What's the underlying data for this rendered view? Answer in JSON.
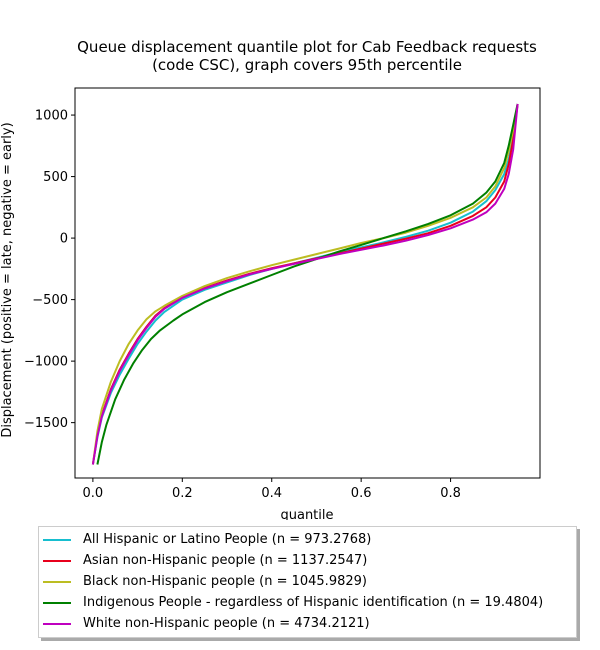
{
  "chart_data": {
    "type": "line",
    "title_lines": [
      "Queue displacement quantile plot for Cab Feedback  requests",
      "(code CSC), graph covers 95th percentile"
    ],
    "xlabel": "quantile",
    "ylabel": "Displacement (positive = late, negative = early)",
    "xlim": [
      -0.04,
      1.0
    ],
    "ylim": [
      -1950,
      1220
    ],
    "xticks": [
      0.0,
      0.2,
      0.4,
      0.6,
      0.8
    ],
    "xtick_labels": [
      "0.0",
      "0.2",
      "0.4",
      "0.6",
      "0.8"
    ],
    "yticks": [
      -1500,
      -1000,
      -500,
      0,
      500,
      1000
    ],
    "ytick_labels": [
      "−1500",
      "−1000",
      "−500",
      "0",
      "500",
      "1000"
    ],
    "grid": false,
    "legend_position": "below",
    "series": [
      {
        "name": "All Hispanic or Latino People (n = 973.2768)",
        "color": "#17becf",
        "x": [
          0.0,
          0.01,
          0.02,
          0.04,
          0.06,
          0.08,
          0.1,
          0.12,
          0.14,
          0.16,
          0.2,
          0.25,
          0.3,
          0.35,
          0.4,
          0.45,
          0.5,
          0.55,
          0.6,
          0.65,
          0.7,
          0.75,
          0.8,
          0.85,
          0.88,
          0.9,
          0.92,
          0.93,
          0.94,
          0.95
        ],
        "y": [
          -1840,
          -1620,
          -1460,
          -1260,
          -1110,
          -980,
          -860,
          -760,
          -670,
          -600,
          -500,
          -420,
          -360,
          -300,
          -250,
          -205,
          -160,
          -115,
          -75,
          -35,
          10,
          60,
          125,
          215,
          300,
          390,
          520,
          640,
          820,
          1090
        ]
      },
      {
        "name": "Asian non-Hispanic people (n = 1137.2547)",
        "color": "#e8001c",
        "x": [
          0.0,
          0.01,
          0.02,
          0.04,
          0.06,
          0.08,
          0.1,
          0.12,
          0.14,
          0.16,
          0.2,
          0.25,
          0.3,
          0.35,
          0.4,
          0.45,
          0.5,
          0.55,
          0.6,
          0.65,
          0.7,
          0.75,
          0.8,
          0.85,
          0.88,
          0.9,
          0.92,
          0.93,
          0.94,
          0.95
        ],
        "y": [
          -1840,
          -1600,
          -1440,
          -1230,
          -1070,
          -940,
          -820,
          -720,
          -630,
          -570,
          -480,
          -405,
          -345,
          -290,
          -245,
          -205,
          -165,
          -125,
          -85,
          -45,
          -5,
          40,
          100,
          180,
          250,
          330,
          460,
          600,
          800,
          1090
        ]
      },
      {
        "name": "Black non-Hispanic people (n = 1045.9829)",
        "color": "#bcbd22",
        "x": [
          0.0,
          0.01,
          0.02,
          0.04,
          0.06,
          0.08,
          0.1,
          0.12,
          0.14,
          0.16,
          0.2,
          0.25,
          0.3,
          0.35,
          0.4,
          0.45,
          0.5,
          0.55,
          0.6,
          0.65,
          0.7,
          0.75,
          0.8,
          0.85,
          0.88,
          0.9,
          0.92,
          0.93,
          0.94,
          0.95
        ],
        "y": [
          -1840,
          -1570,
          -1390,
          -1170,
          -1000,
          -860,
          -750,
          -660,
          -595,
          -550,
          -470,
          -390,
          -325,
          -270,
          -220,
          -175,
          -130,
          -85,
          -40,
          0,
          45,
          100,
          165,
          250,
          330,
          420,
          570,
          710,
          880,
          1090
        ]
      },
      {
        "name": "Indigenous People - regardless of Hispanic identification (n = 19.4804)",
        "color": "#008000",
        "x": [
          0.01,
          0.02,
          0.03,
          0.05,
          0.07,
          0.09,
          0.11,
          0.13,
          0.15,
          0.18,
          0.2,
          0.25,
          0.3,
          0.35,
          0.4,
          0.45,
          0.5,
          0.55,
          0.6,
          0.65,
          0.7,
          0.75,
          0.8,
          0.85,
          0.88,
          0.9,
          0.92,
          0.93,
          0.94,
          0.95
        ],
        "y": [
          -1840,
          -1660,
          -1520,
          -1310,
          -1150,
          -1020,
          -910,
          -820,
          -750,
          -670,
          -620,
          -520,
          -440,
          -370,
          -300,
          -230,
          -170,
          -110,
          -55,
          0,
          55,
          115,
          185,
          280,
          370,
          460,
          610,
          750,
          920,
          1090
        ]
      },
      {
        "name": "White non-Hispanic people (n = 4734.2121)",
        "color": "#bf00bf",
        "x": [
          0.0,
          0.01,
          0.02,
          0.04,
          0.06,
          0.08,
          0.1,
          0.12,
          0.14,
          0.16,
          0.2,
          0.25,
          0.3,
          0.35,
          0.4,
          0.45,
          0.5,
          0.55,
          0.6,
          0.65,
          0.7,
          0.75,
          0.8,
          0.85,
          0.88,
          0.9,
          0.92,
          0.93,
          0.94,
          0.95
        ],
        "y": [
          -1840,
          -1610,
          -1450,
          -1240,
          -1080,
          -950,
          -830,
          -730,
          -640,
          -575,
          -485,
          -410,
          -350,
          -295,
          -250,
          -210,
          -170,
          -130,
          -95,
          -60,
          -20,
          25,
          80,
          150,
          210,
          280,
          400,
          520,
          720,
          1090
        ]
      }
    ]
  }
}
